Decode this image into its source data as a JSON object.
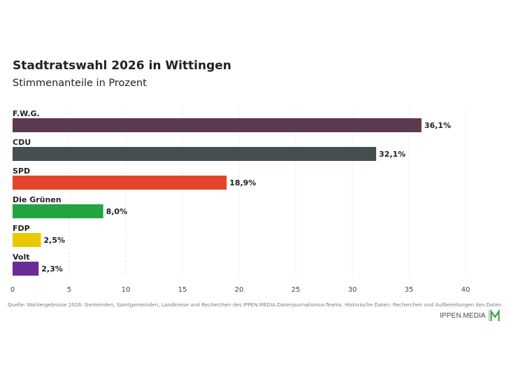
{
  "header": {
    "title": "Stadtratswahl 2026 in Wittingen",
    "subtitle": "Stimmenanteile in Prozent"
  },
  "source": "Quelle: Wahlergebnisse 2026: Gemeinden, Samtgemeinden, Landkreise und Recherchen des IPPEN.MEDIA Datenjournalismus-Teams. Historische Daten: Recherchen und Aufbereitungen des Daten",
  "logo": {
    "text": "IPPEN.MEDIA"
  },
  "chart_data": {
    "type": "bar",
    "orientation": "horizontal",
    "title": "Stadtratswahl 2026 in Wittingen",
    "subtitle": "Stimmenanteile in Prozent",
    "categories": [
      "F.W.G.",
      "CDU",
      "SPD",
      "Die Grünen",
      "FDP",
      "Volt"
    ],
    "values": [
      36.1,
      32.1,
      18.9,
      8.0,
      2.5,
      2.3
    ],
    "value_labels": [
      "36,1%",
      "32,1%",
      "18,9%",
      "8,0%",
      "2,5%",
      "2,3%"
    ],
    "colors": [
      "#5b3a50",
      "#454f4f",
      "#e5432a",
      "#23a341",
      "#e8c800",
      "#6a2b96"
    ],
    "xlim": [
      0,
      40
    ],
    "xticks": [
      "0",
      "5",
      "10",
      "15",
      "20",
      "25",
      "30",
      "35",
      "40"
    ],
    "grid": true,
    "legend": "none"
  }
}
